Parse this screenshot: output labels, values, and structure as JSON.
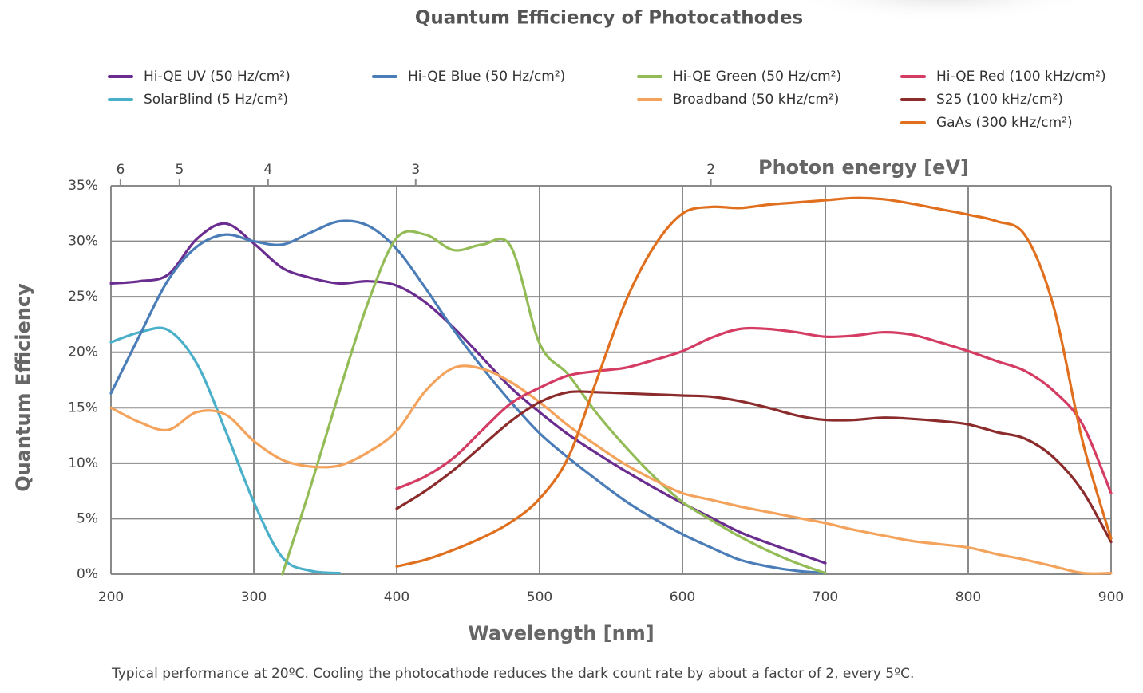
{
  "chart_data": {
    "type": "line",
    "title": "Quantum Efficiency of Photocathodes",
    "x_label": "Wavelength [nm]",
    "y_label": "Quantum Efficiency",
    "x2_label": "Photon energy [eV]",
    "note": "Typical performance at 20ºC. Cooling the photocathode reduces the dark count rate by about a factor of 2, every 5ºC.",
    "x": [
      200,
      220,
      240,
      260,
      280,
      300,
      320,
      340,
      360,
      380,
      400,
      420,
      440,
      460,
      480,
      500,
      520,
      540,
      560,
      580,
      600,
      620,
      640,
      660,
      680,
      700,
      720,
      740,
      760,
      780,
      800,
      820,
      840,
      860,
      880,
      900
    ],
    "xlim": [
      200,
      900
    ],
    "xticks": [
      200,
      300,
      400,
      500,
      600,
      700,
      800,
      900
    ],
    "ylim": [
      0,
      35
    ],
    "yticks": [
      {
        "value": 0,
        "label": "0%"
      },
      {
        "value": 5,
        "label": "5%"
      },
      {
        "value": 10,
        "label": "10%"
      },
      {
        "value": 15,
        "label": "15%"
      },
      {
        "value": 20,
        "label": "20%"
      },
      {
        "value": 25,
        "label": "25%"
      },
      {
        "value": 30,
        "label": "30%"
      },
      {
        "value": 35,
        "label": "35%"
      }
    ],
    "x2ticks": [
      6,
      5,
      4,
      3,
      2
    ],
    "grid": true,
    "series": [
      {
        "name": "Hi-QE UV (50 Hz/cm²)",
        "color": "#6b2c8f",
        "values": [
          26.2,
          26.4,
          27.0,
          30.2,
          31.6,
          29.8,
          27.6,
          26.7,
          26.2,
          26.4,
          26.0,
          24.5,
          22.2,
          19.5,
          16.8,
          14.6,
          12.6,
          10.9,
          9.3,
          7.8,
          6.4,
          5.1,
          3.8,
          2.8,
          1.9,
          1.0,
          null,
          null,
          null,
          null,
          null,
          null,
          null,
          null,
          null,
          null
        ]
      },
      {
        "name": "SolarBlind (5 Hz/cm²)",
        "color": "#4aafc9",
        "values": [
          20.9,
          21.8,
          22.0,
          19.0,
          13.0,
          6.5,
          1.5,
          0.3,
          0.1,
          null,
          null,
          null,
          null,
          null,
          null,
          null,
          null,
          null,
          null,
          null,
          null,
          null,
          null,
          null,
          null,
          null,
          null,
          null,
          null,
          null,
          null,
          null,
          null,
          null,
          null,
          null
        ]
      },
      {
        "name": "Hi-QE Blue (50 Hz/cm²)",
        "color": "#4a7db7",
        "values": [
          16.3,
          21.5,
          26.5,
          29.5,
          30.6,
          30.0,
          29.7,
          30.8,
          31.8,
          31.4,
          29.3,
          25.8,
          22.0,
          18.6,
          15.5,
          12.7,
          10.5,
          8.5,
          6.6,
          5.0,
          3.6,
          2.4,
          1.3,
          0.7,
          0.3,
          0.1,
          null,
          null,
          null,
          null,
          null,
          null,
          null,
          null,
          null,
          null
        ]
      },
      {
        "name": "Hi-QE Green (50 Hz/cm²)",
        "color": "#93bc57",
        "values": [
          null,
          null,
          null,
          null,
          null,
          null,
          0.0,
          8.0,
          16.5,
          24.5,
          30.3,
          30.6,
          29.2,
          29.7,
          29.5,
          20.8,
          18.0,
          14.5,
          11.5,
          8.8,
          6.5,
          4.9,
          3.4,
          2.1,
          1.0,
          0.1,
          null,
          null,
          null,
          null,
          null,
          null,
          null,
          null,
          null,
          null
        ]
      },
      {
        "name": "Broadband (50 kHz/cm²)",
        "color": "#f4a35c",
        "values": [
          15.0,
          13.7,
          13.0,
          14.6,
          14.4,
          12.0,
          10.3,
          9.7,
          9.8,
          11.0,
          12.9,
          16.5,
          18.6,
          18.5,
          17.3,
          15.5,
          13.4,
          11.6,
          9.9,
          8.5,
          7.3,
          6.7,
          6.1,
          5.6,
          5.1,
          4.6,
          4.0,
          3.5,
          3.0,
          2.7,
          2.4,
          1.8,
          1.3,
          0.7,
          0.1,
          0.1
        ]
      },
      {
        "name": "Hi-QE Red (100 kHz/cm²)",
        "color": "#d43c63",
        "values": [
          null,
          null,
          null,
          null,
          null,
          null,
          null,
          null,
          null,
          null,
          7.7,
          8.8,
          10.5,
          13.0,
          15.4,
          16.8,
          17.9,
          18.3,
          18.6,
          19.3,
          20.1,
          21.3,
          22.1,
          22.1,
          21.8,
          21.4,
          21.5,
          21.8,
          21.6,
          20.9,
          20.1,
          19.2,
          18.3,
          16.5,
          13.5,
          7.3
        ]
      },
      {
        "name": "S25 (100 kHz/cm²)",
        "color": "#8c2b2b",
        "values": [
          null,
          null,
          null,
          null,
          null,
          null,
          null,
          null,
          null,
          null,
          5.9,
          7.5,
          9.4,
          11.6,
          13.8,
          15.5,
          16.4,
          16.4,
          16.3,
          16.2,
          16.1,
          16.0,
          15.6,
          15.0,
          14.3,
          13.9,
          13.9,
          14.1,
          14.0,
          13.8,
          13.5,
          12.8,
          12.2,
          10.5,
          7.5,
          2.9
        ]
      },
      {
        "name": "GaAs (300 kHz/cm²)",
        "color": "#e06f1e",
        "values": [
          null,
          null,
          null,
          null,
          null,
          null,
          null,
          null,
          null,
          null,
          0.7,
          1.3,
          2.2,
          3.3,
          4.7,
          6.8,
          10.5,
          17.5,
          24.5,
          29.5,
          32.5,
          33.1,
          33.0,
          33.3,
          33.5,
          33.7,
          33.9,
          33.8,
          33.4,
          32.9,
          32.4,
          31.8,
          30.5,
          24.0,
          12.0,
          3.2
        ]
      }
    ]
  }
}
